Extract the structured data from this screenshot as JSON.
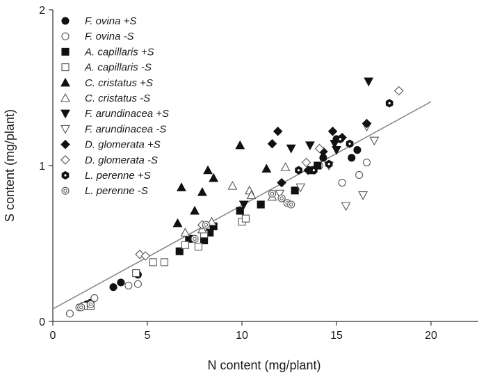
{
  "chart_data": {
    "type": "scatter",
    "title": "",
    "xlabel": "N content (mg/plant)",
    "ylabel": "S content (mg/plant)",
    "xlim": [
      0,
      22.5
    ],
    "ylim": [
      0,
      2
    ],
    "xticks": [
      0,
      5,
      10,
      15,
      20
    ],
    "yticks": [
      0,
      1,
      2
    ],
    "grid": false,
    "legend_position": "top-left",
    "colors": {
      "filled": "#111111",
      "open_stroke": "#555555",
      "fit_line": "#888888"
    },
    "regression_line": {
      "x": [
        0,
        20
      ],
      "y": [
        0.08,
        1.41
      ]
    },
    "series": [
      {
        "name": "F. ovina +S",
        "marker": "circle",
        "filled": true,
        "points": [
          [
            1.8,
            0.11
          ],
          [
            2.0,
            0.12
          ],
          [
            3.2,
            0.22
          ],
          [
            3.6,
            0.25
          ],
          [
            4.5,
            0.3
          ],
          [
            14.3,
            1.05
          ],
          [
            15.0,
            1.17
          ],
          [
            15.8,
            1.05
          ],
          [
            16.1,
            1.1
          ]
        ]
      },
      {
        "name": "F. ovina  -S",
        "marker": "circle",
        "filled": false,
        "points": [
          [
            0.9,
            0.05
          ],
          [
            1.4,
            0.09
          ],
          [
            1.6,
            0.1
          ],
          [
            2.2,
            0.15
          ],
          [
            4.0,
            0.23
          ],
          [
            4.5,
            0.24
          ],
          [
            14.1,
            1.0
          ],
          [
            15.3,
            0.89
          ],
          [
            16.2,
            0.94
          ],
          [
            16.6,
            1.02
          ]
        ]
      },
      {
        "name": "A. capillaris +S",
        "marker": "square",
        "filled": true,
        "points": [
          [
            6.7,
            0.45
          ],
          [
            7.2,
            0.53
          ],
          [
            8.0,
            0.52
          ],
          [
            8.3,
            0.57
          ],
          [
            8.5,
            0.61
          ],
          [
            9.9,
            0.71
          ],
          [
            11.0,
            0.75
          ],
          [
            12.8,
            0.84
          ],
          [
            13.7,
            0.97
          ],
          [
            14.0,
            1.0
          ]
        ]
      },
      {
        "name": "A. capillaris  -S",
        "marker": "square",
        "filled": false,
        "points": [
          [
            1.7,
            0.1
          ],
          [
            2.0,
            0.1
          ],
          [
            4.4,
            0.31
          ],
          [
            5.3,
            0.38
          ],
          [
            5.9,
            0.38
          ],
          [
            7.0,
            0.49
          ],
          [
            7.7,
            0.48
          ],
          [
            8.0,
            0.56
          ],
          [
            10.0,
            0.64
          ],
          [
            10.2,
            0.66
          ]
        ]
      },
      {
        "name": "C. cristatus +S",
        "marker": "triangle-up",
        "filled": true,
        "points": [
          [
            6.6,
            0.63
          ],
          [
            6.8,
            0.86
          ],
          [
            7.5,
            0.71
          ],
          [
            7.9,
            0.83
          ],
          [
            8.2,
            0.97
          ],
          [
            8.5,
            0.92
          ],
          [
            9.9,
            1.13
          ],
          [
            11.3,
            0.98
          ]
        ]
      },
      {
        "name": "C. cristatus  -S",
        "marker": "triangle-up",
        "filled": false,
        "points": [
          [
            7.0,
            0.57
          ],
          [
            7.9,
            0.59
          ],
          [
            8.4,
            0.64
          ],
          [
            9.5,
            0.87
          ],
          [
            10.4,
            0.84
          ],
          [
            10.5,
            0.81
          ],
          [
            11.6,
            0.8
          ],
          [
            12.3,
            0.99
          ]
        ]
      },
      {
        "name": "F. arundinacea +S",
        "marker": "triangle-down",
        "filled": true,
        "points": [
          [
            10.1,
            0.75
          ],
          [
            12.6,
            1.11
          ],
          [
            13.6,
            1.13
          ],
          [
            14.9,
            1.14
          ],
          [
            15.0,
            1.1
          ],
          [
            16.7,
            1.54
          ]
        ]
      },
      {
        "name": "F. arundinacea  -S",
        "marker": "triangle-down",
        "filled": false,
        "points": [
          [
            12.0,
            0.82
          ],
          [
            13.1,
            0.86
          ],
          [
            14.6,
            1.0
          ],
          [
            15.5,
            0.74
          ],
          [
            16.4,
            0.81
          ],
          [
            16.6,
            1.25
          ],
          [
            17.0,
            1.16
          ]
        ]
      },
      {
        "name": "D. glomerata +S",
        "marker": "diamond",
        "filled": true,
        "points": [
          [
            11.6,
            1.14
          ],
          [
            11.9,
            1.22
          ],
          [
            12.1,
            0.89
          ],
          [
            13.5,
            0.97
          ],
          [
            14.3,
            1.09
          ],
          [
            14.8,
            1.22
          ],
          [
            15.3,
            1.18
          ],
          [
            16.6,
            1.27
          ]
        ]
      },
      {
        "name": "D. glomerata  -S",
        "marker": "diamond",
        "filled": false,
        "points": [
          [
            4.6,
            0.43
          ],
          [
            4.9,
            0.42
          ],
          [
            7.9,
            0.62
          ],
          [
            13.4,
            1.02
          ],
          [
            14.1,
            1.11
          ],
          [
            18.3,
            1.48
          ]
        ]
      },
      {
        "name": "L. perenne +S",
        "marker": "hexagon",
        "filled": true,
        "points": [
          [
            13.0,
            0.97
          ],
          [
            13.8,
            0.97
          ],
          [
            14.6,
            1.01
          ],
          [
            15.2,
            1.17
          ],
          [
            15.7,
            1.14
          ],
          [
            17.8,
            1.4
          ]
        ]
      },
      {
        "name": "L. perenne  -S",
        "marker": "circle-dot",
        "filled": false,
        "points": [
          [
            1.5,
            0.09
          ],
          [
            2.0,
            0.11
          ],
          [
            7.5,
            0.53
          ],
          [
            8.1,
            0.62
          ],
          [
            11.6,
            0.82
          ],
          [
            12.1,
            0.79
          ],
          [
            12.4,
            0.76
          ],
          [
            12.6,
            0.75
          ]
        ]
      }
    ]
  }
}
